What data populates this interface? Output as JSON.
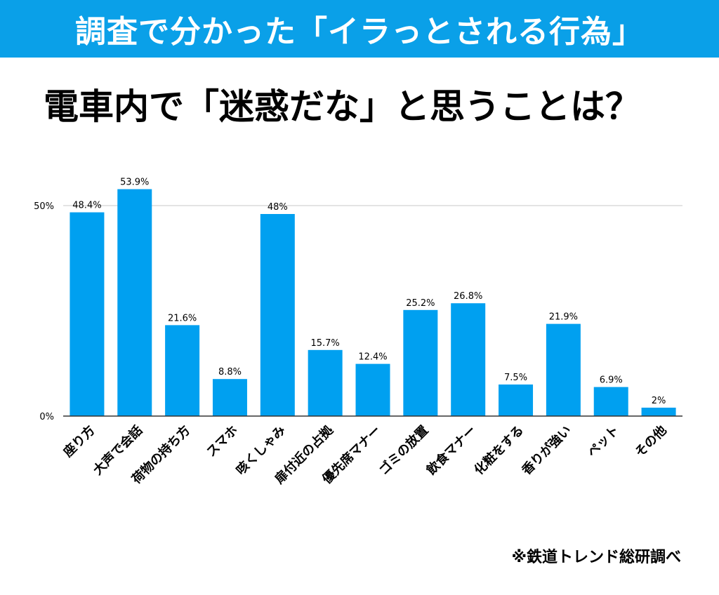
{
  "banner": {
    "title": "調査で分かった「イラっとされる行為」"
  },
  "source_note": "※鉄道トレンド総研調べ",
  "chart_data": {
    "type": "bar",
    "title": "電車内で「迷惑だな」と思うことは？",
    "categories": [
      "座り方",
      "大声で会話",
      "荷物の持ち方",
      "スマホ",
      "咳くしゃみ",
      "扉付近の占拠",
      "優先席マナー",
      "ゴミの放置",
      "飲食マナー",
      "化粧をする",
      "香りが強い",
      "ペット",
      "その他"
    ],
    "values": [
      48.4,
      53.9,
      21.6,
      8.8,
      48,
      15.7,
      12.4,
      25.2,
      26.8,
      7.5,
      21.9,
      6.9,
      2
    ],
    "value_labels": [
      "48.4%",
      "53.9%",
      "21.6%",
      "8.8%",
      "48%",
      "15.7%",
      "12.4%",
      "25.2%",
      "26.8%",
      "7.5%",
      "21.9%",
      "6.9%",
      "2%"
    ],
    "y_ticks": [
      0,
      50
    ],
    "y_tick_labels": [
      "0%",
      "50%"
    ],
    "xlabel": "",
    "ylabel": "",
    "ylim": [
      0,
      55
    ],
    "grid": true,
    "bar_color": "#00a0f0",
    "grid_color": "#c8c8c8",
    "axis_color": "#333333"
  }
}
